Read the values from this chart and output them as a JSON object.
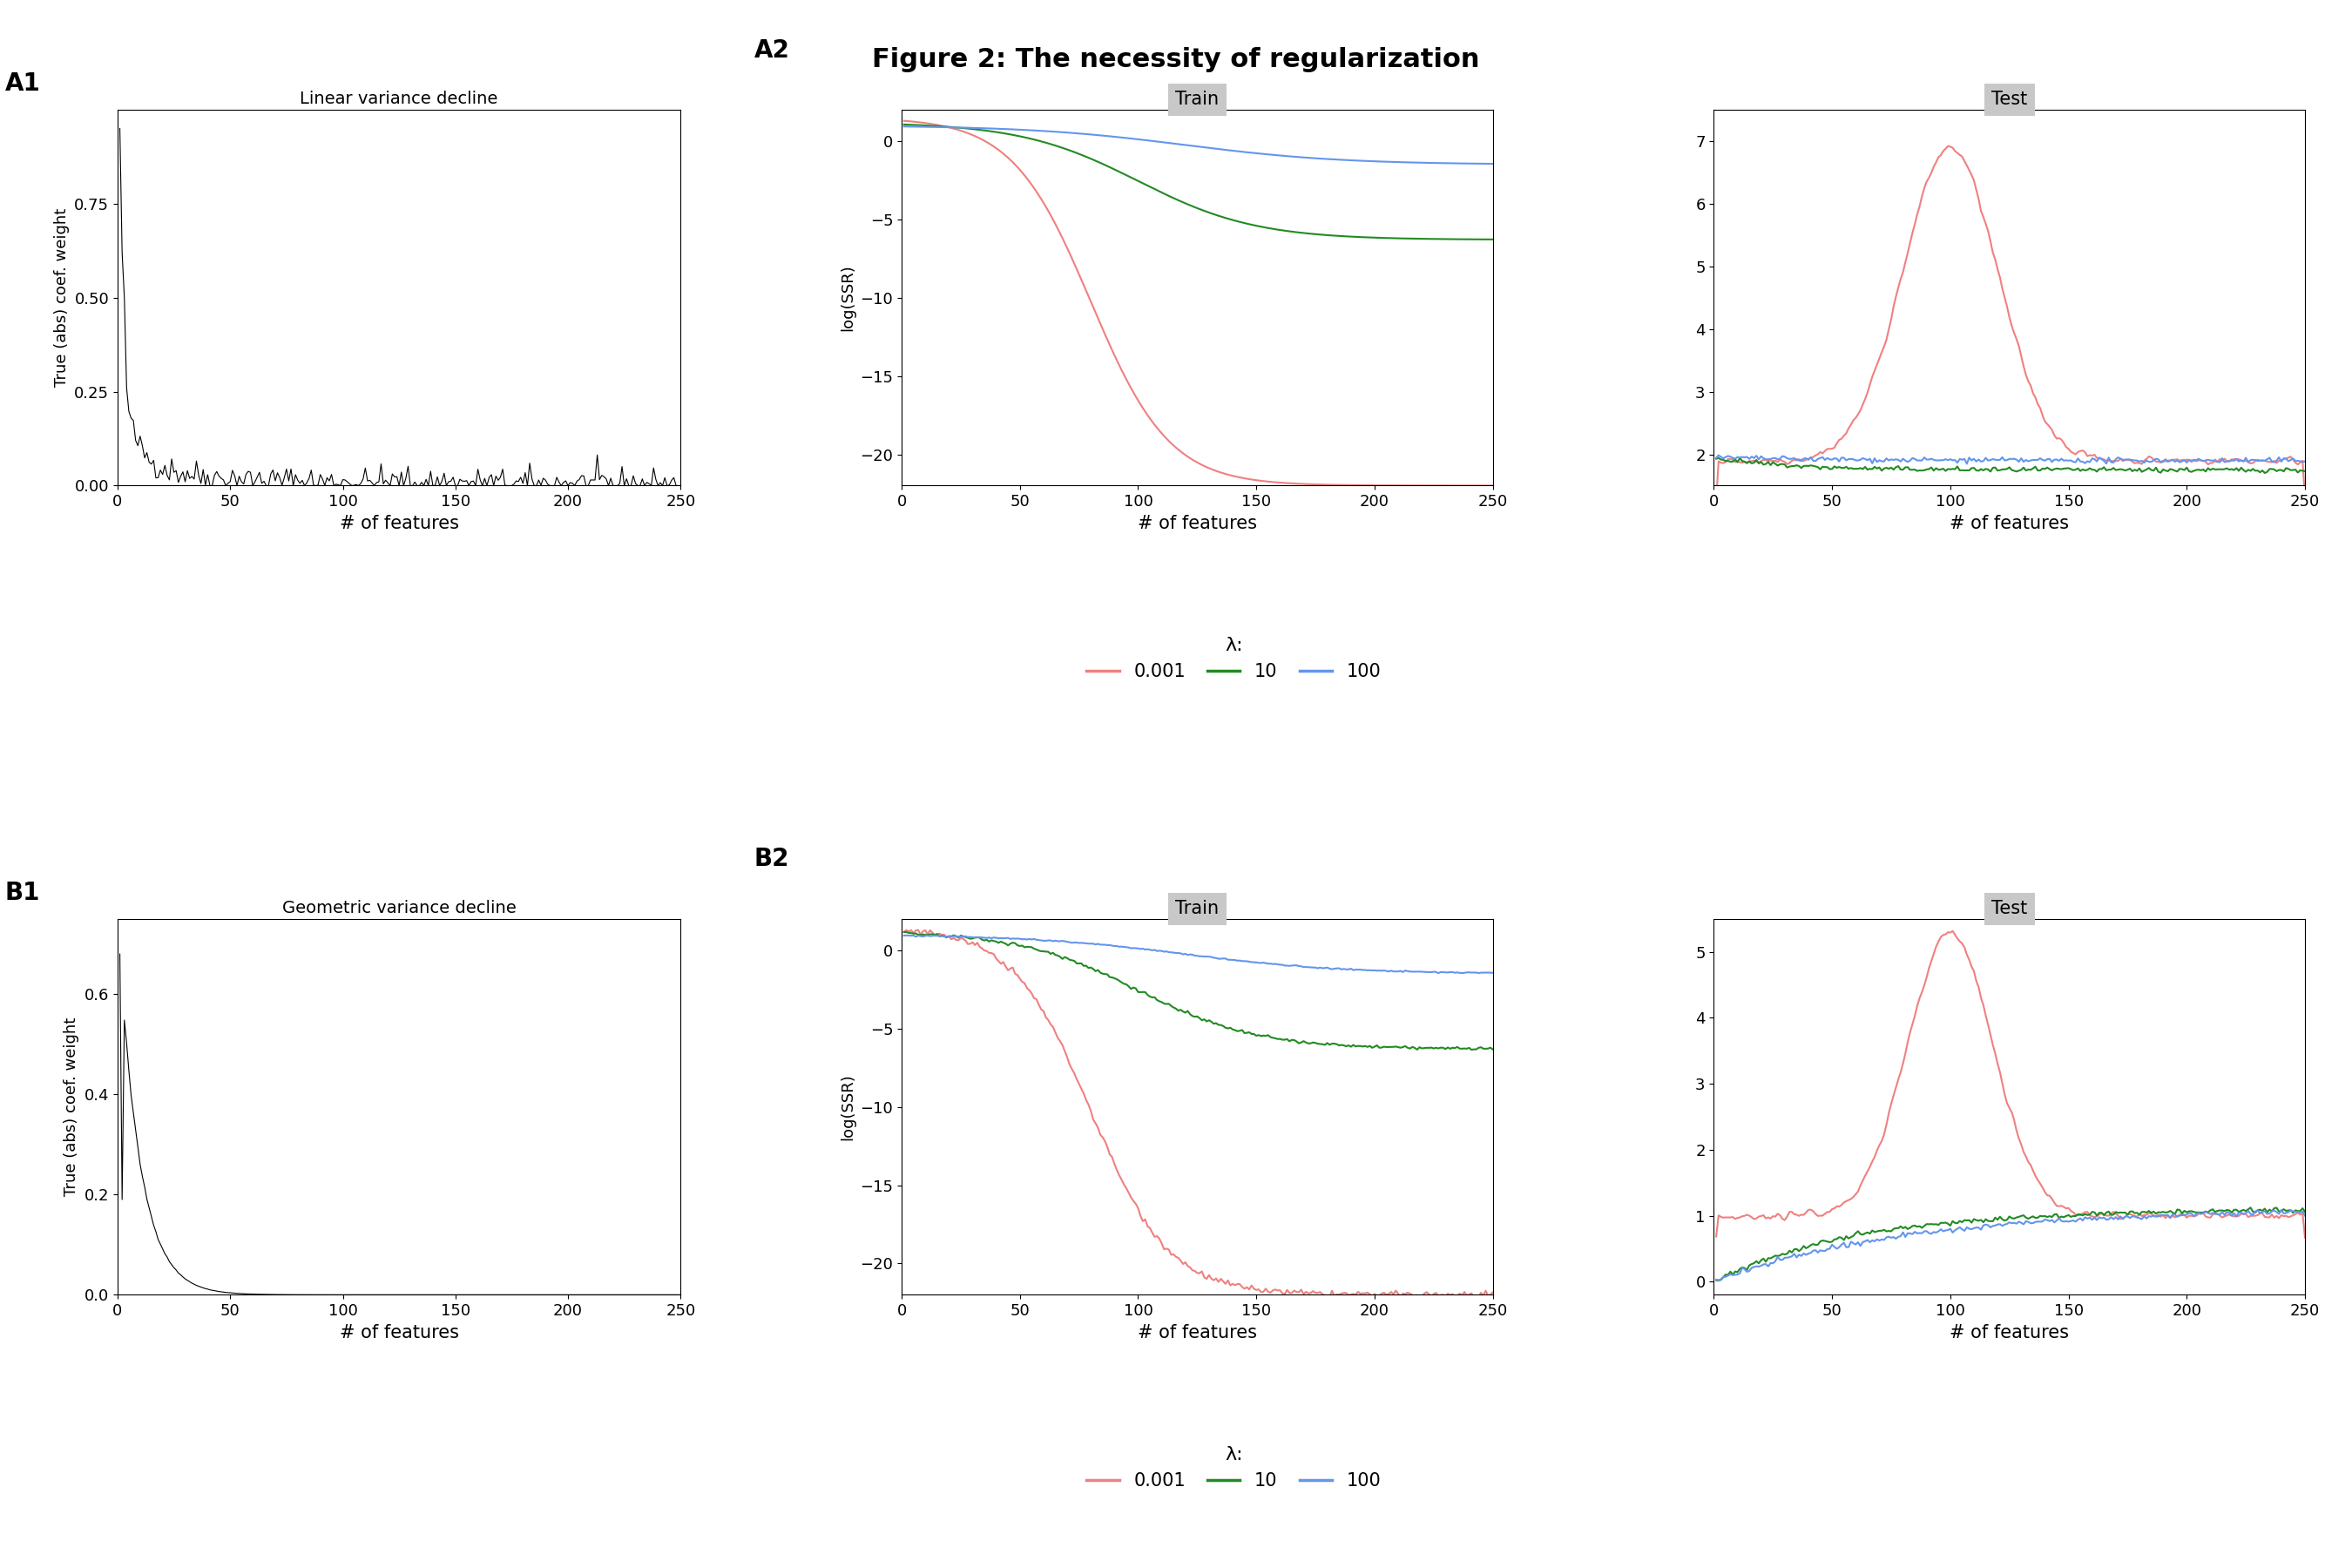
{
  "title": "Figure 2: The necessity of regularization",
  "title_fontsize": 22,
  "title_fontweight": "bold",
  "n_features": 250,
  "seed": 42,
  "subplot_titles_A1": "Linear variance decline",
  "subplot_titles_B1": "Geometric variance decline",
  "subplot_titles_train": "Train",
  "subplot_titles_test": "Test",
  "xlabel": "# of features",
  "ylabel_coef": "True (abs) coef. weight",
  "ylabel_ssr": "log(SSR)",
  "colors": {
    "lambda_001": "#F08080",
    "lambda_10": "#228B22",
    "lambda_100": "#6495ED"
  },
  "legend_title": "λ:",
  "strip_bg_color": "#C8C8C8",
  "line_width": 1.5,
  "font_family": "DejaVu Sans"
}
